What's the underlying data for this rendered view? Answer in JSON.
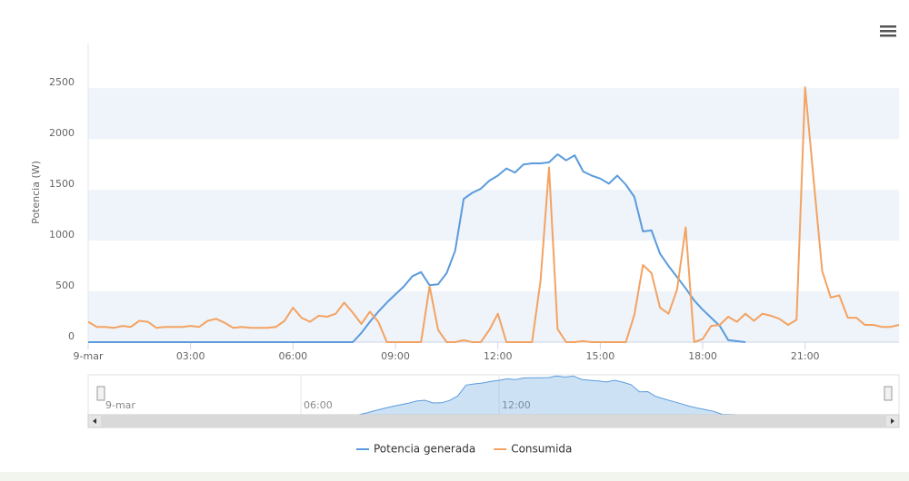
{
  "chart_data": {
    "type": "line",
    "y_label": "Potencia (W)",
    "x": [
      0,
      0.25,
      0.5,
      0.75,
      1,
      1.25,
      1.5,
      1.75,
      2,
      2.25,
      2.5,
      2.75,
      3,
      3.25,
      3.5,
      3.75,
      4,
      4.25,
      4.5,
      4.75,
      5,
      5.25,
      5.5,
      5.75,
      6,
      6.25,
      6.5,
      6.75,
      7,
      7.25,
      7.5,
      7.75,
      8,
      8.25,
      8.5,
      8.75,
      9,
      9.25,
      9.5,
      9.75,
      10,
      10.25,
      10.5,
      10.75,
      11,
      11.25,
      11.5,
      11.75,
      12,
      12.25,
      12.5,
      12.75,
      13,
      13.25,
      13.5,
      13.75,
      14,
      14.25,
      14.5,
      14.75,
      15,
      15.25,
      15.5,
      15.75,
      16,
      16.25,
      16.5,
      16.75,
      17,
      17.25,
      17.5,
      17.75,
      18,
      18.25,
      18.5,
      18.75,
      19,
      19.25,
      19.5,
      19.75,
      20,
      20.25,
      20.5,
      20.75,
      21,
      21.25,
      21.5,
      21.75,
      22,
      22.25,
      22.5,
      22.75,
      23,
      23.25,
      23.5,
      23.75
    ],
    "series": [
      {
        "name": "Potencia generada",
        "color": "#5b9bdc",
        "values": [
          0,
          0,
          0,
          0,
          0,
          0,
          0,
          0,
          0,
          0,
          0,
          0,
          0,
          0,
          0,
          0,
          0,
          0,
          0,
          0,
          0,
          0,
          0,
          0,
          0,
          0,
          0,
          0,
          0,
          0,
          0,
          0,
          90,
          200,
          300,
          390,
          470,
          550,
          650,
          690,
          560,
          570,
          680,
          900,
          1410,
          1470,
          1510,
          1590,
          1640,
          1710,
          1670,
          1750,
          1760,
          1760,
          1770,
          1850,
          1790,
          1840,
          1680,
          1640,
          1610,
          1560,
          1640,
          1550,
          1430,
          1090,
          1100,
          870,
          750,
          640,
          530,
          410,
          320,
          240,
          160,
          20,
          10,
          0,
          null,
          null,
          null,
          null,
          null,
          null,
          null,
          null,
          null,
          null,
          null,
          null,
          null,
          null,
          null,
          null,
          null,
          null
        ]
      },
      {
        "name": "Consumida",
        "color": "#f4a261",
        "values": [
          200,
          150,
          150,
          140,
          160,
          150,
          210,
          200,
          140,
          150,
          150,
          150,
          160,
          150,
          210,
          230,
          190,
          140,
          150,
          140,
          140,
          140,
          150,
          210,
          340,
          240,
          200,
          260,
          250,
          280,
          390,
          290,
          180,
          300,
          200,
          0,
          0,
          0,
          0,
          0,
          550,
          120,
          0,
          0,
          20,
          0,
          0,
          120,
          280,
          0,
          0,
          0,
          0,
          600,
          1720,
          130,
          0,
          0,
          10,
          0,
          0,
          0,
          0,
          0,
          270,
          760,
          680,
          340,
          280,
          520,
          1130,
          0,
          30,
          160,
          170,
          250,
          200,
          280,
          210,
          280,
          260,
          230,
          170,
          220,
          2510,
          1600,
          700,
          440,
          460,
          240,
          240,
          170,
          170,
          150,
          150,
          170
        ]
      }
    ],
    "xlim": [
      0,
      23.75
    ],
    "xticks": [
      {
        "value": 0,
        "label": "9-mar"
      },
      {
        "value": 3,
        "label": "03:00"
      },
      {
        "value": 6,
        "label": "06:00"
      },
      {
        "value": 9,
        "label": "09:00"
      },
      {
        "value": 12,
        "label": "12:00"
      },
      {
        "value": 15,
        "label": "15:00"
      },
      {
        "value": 18,
        "label": "18:00"
      },
      {
        "value": 21,
        "label": "21:00"
      }
    ],
    "ylim": [
      0,
      2940
    ],
    "yticks": [
      0,
      500,
      1000,
      1500,
      2000,
      2500
    ],
    "navigator_xticks": [
      {
        "value": 0,
        "label": "9-mar"
      },
      {
        "value": 6,
        "label": "06:00"
      },
      {
        "value": 12,
        "label": "12:00"
      }
    ],
    "navigator_ylim": [
      0,
      1900
    ]
  }
}
